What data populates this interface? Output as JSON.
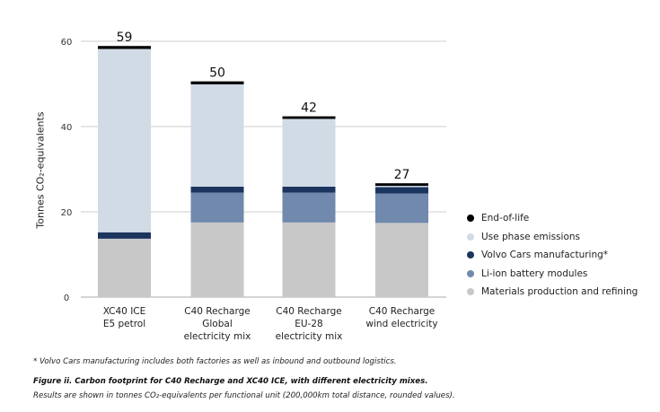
{
  "chart_data": {
    "type": "bar",
    "stacked": true,
    "ylabel": "Tonnes CO₂-equivalents",
    "ylim": [
      0,
      60
    ],
    "yticks": [
      "0",
      "20",
      "40",
      "60"
    ],
    "grid": true,
    "legend_position": "right",
    "categories": [
      [
        "XC40 ICE",
        "E5 petrol"
      ],
      [
        "C40 Recharge",
        "Global",
        "electricity mix"
      ],
      [
        "C40 Recharge",
        "EU-28",
        "electricity mix"
      ],
      [
        "C40 Recharge",
        "wind electricity"
      ]
    ],
    "totals": [
      "59",
      "50",
      "42",
      "27"
    ],
    "series": [
      {
        "name": "Materials production and refining",
        "color": "#c8c8c8",
        "values": [
          13.7,
          17.5,
          17.5,
          17.4
        ]
      },
      {
        "name": "Li-ion battery modules",
        "color": "#7089ad",
        "values": [
          0,
          7.0,
          7.0,
          6.9
        ]
      },
      {
        "name": "Volvo Cars manufacturing*",
        "color": "#1c355e",
        "values": [
          1.5,
          1.4,
          1.4,
          1.5
        ]
      },
      {
        "name": "Use phase emissions",
        "color": "#d0dbe6",
        "values": [
          43.0,
          24.0,
          15.9,
          0.3
        ]
      },
      {
        "name": "End-of-life",
        "color": "#000000",
        "values": [
          0.7,
          0.7,
          0.6,
          0.6
        ]
      }
    ],
    "legend_order": [
      4,
      3,
      2,
      1,
      0
    ]
  },
  "footnote": "* Volvo Cars manufacturing includes both factories as well as inbound and outbound logistics.",
  "caption_title": "Figure ii. Carbon footprint for C40 Recharge and XC40 ICE, with different electricity mixes.",
  "caption_text": "Results are shown in tonnes CO₂-equivalents per functional unit (200,000km total distance, rounded values)."
}
